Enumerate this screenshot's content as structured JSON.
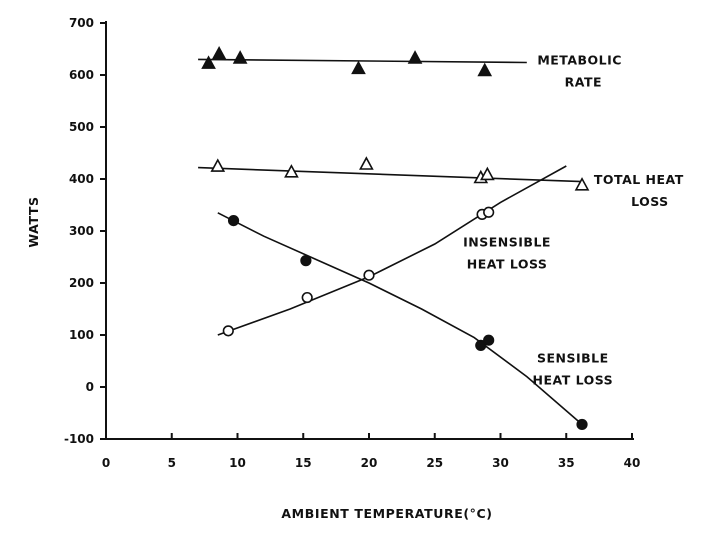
{
  "chart_data": {
    "type": "scatter",
    "title": "",
    "xlabel": "AMBIENT TEMPERATURE(°C)",
    "ylabel": "WATTS",
    "xlim": [
      0,
      40
    ],
    "ylim": [
      -100,
      700
    ],
    "xticks": [
      0,
      5,
      10,
      15,
      20,
      25,
      30,
      35,
      40
    ],
    "yticks": [
      700,
      600,
      500,
      400,
      300,
      200,
      100,
      0,
      -100
    ],
    "grid": false,
    "series": [
      {
        "name": "METABOLIC RATE",
        "label_lines": [
          "METABOLIC",
          "RATE"
        ],
        "marker": "triangle-filled",
        "points": [
          [
            7.8,
            622
          ],
          [
            8.6,
            640
          ],
          [
            10.2,
            632
          ],
          [
            19.2,
            612
          ],
          [
            23.5,
            632
          ],
          [
            28.8,
            608
          ]
        ],
        "fit": [
          [
            7.0,
            630
          ],
          [
            32.0,
            624
          ]
        ]
      },
      {
        "name": "TOTAL HEAT LOSS",
        "label_lines": [
          "TOTAL HEAT",
          "LOSS"
        ],
        "marker": "triangle-open",
        "points": [
          [
            8.5,
            424
          ],
          [
            14.1,
            413
          ],
          [
            19.8,
            428
          ],
          [
            28.5,
            402
          ],
          [
            29.0,
            408
          ],
          [
            36.2,
            388
          ]
        ],
        "fit": [
          [
            7.0,
            422
          ],
          [
            36.2,
            395
          ]
        ]
      },
      {
        "name": "INSENSIBLE HEAT LOSS",
        "label_lines": [
          "INSENSIBLE",
          "HEAT LOSS"
        ],
        "marker": "circle-open",
        "points": [
          [
            9.3,
            108
          ],
          [
            15.3,
            172
          ],
          [
            20.0,
            215
          ],
          [
            28.6,
            332
          ],
          [
            29.1,
            336
          ]
        ],
        "fit": [
          [
            8.5,
            100
          ],
          [
            14,
            150
          ],
          [
            20,
            212
          ],
          [
            25,
            275
          ],
          [
            30,
            355
          ],
          [
            35,
            425
          ]
        ]
      },
      {
        "name": "SENSIBLE HEAT LOSS",
        "label_lines": [
          "SENSIBLE",
          "HEAT LOSS"
        ],
        "marker": "circle-filled",
        "points": [
          [
            9.7,
            320
          ],
          [
            15.2,
            243
          ],
          [
            28.5,
            80
          ],
          [
            29.1,
            90
          ],
          [
            36.2,
            -72
          ]
        ],
        "fit": [
          [
            8.5,
            335
          ],
          [
            12,
            290
          ],
          [
            16,
            245
          ],
          [
            20,
            200
          ],
          [
            24,
            150
          ],
          [
            28,
            95
          ],
          [
            32,
            20
          ],
          [
            36.2,
            -72
          ]
        ]
      }
    ]
  }
}
